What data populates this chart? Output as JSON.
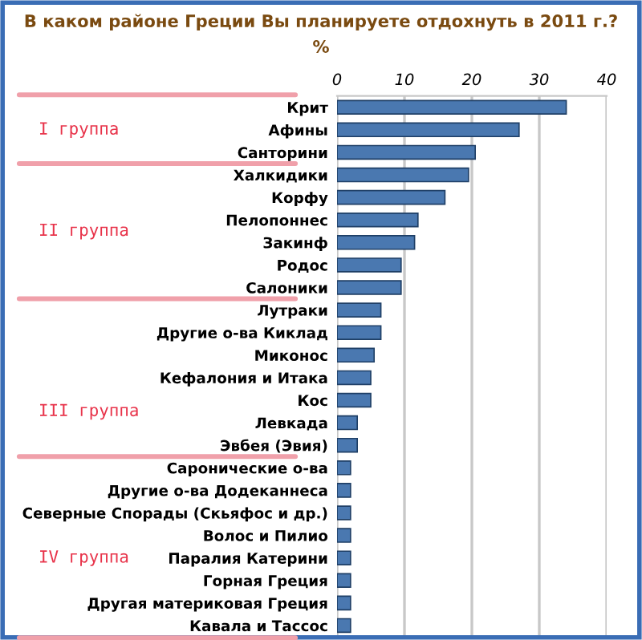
{
  "chart_data": {
    "type": "bar",
    "orientation": "horizontal",
    "title": "В каком районе Греции Вы планируете отдохнуть в 2011 г.?",
    "subtitle": "%",
    "categories": [
      "Крит",
      "Афины",
      "Санторини",
      "Халкидики",
      "Корфу",
      "Пелопоннес",
      "Закинф",
      "Родос",
      "Салоники",
      "Лутраки",
      "Другие о-ва Киклад",
      "Миконос",
      "Кефалония и Итака",
      "Кос",
      "Левкада",
      "Эвбея (Эвия)",
      "Саронические о-ва",
      "Другие о-ва Додеканнеса",
      "Северные Спорады (Скьяфос и др.)",
      "Волос и Пилио",
      "Паралия Катерини",
      "Горная Греция",
      "Другая материковая Греция",
      "Кавала и Тассос"
    ],
    "values": [
      34,
      27,
      20.5,
      19.5,
      16,
      12,
      11.5,
      9.5,
      9.5,
      6.5,
      6.5,
      5.5,
      5,
      5,
      3,
      3,
      2,
      2,
      2,
      2,
      2,
      2,
      2,
      2
    ],
    "color": "#4a78b0",
    "xlim": [
      0,
      40
    ],
    "xticks": [
      0,
      10,
      20,
      30,
      40
    ],
    "grid": "x",
    "annotations": [
      "I группа",
      "II группа",
      "III группа",
      "IV группа"
    ]
  }
}
